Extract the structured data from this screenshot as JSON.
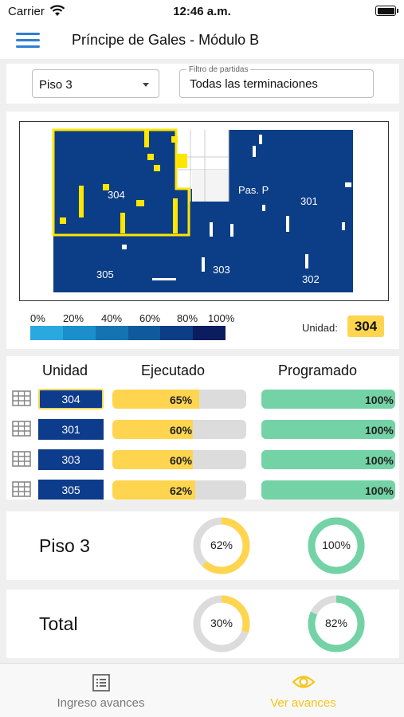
{
  "status_bar": {
    "carrier": "Carrier",
    "time": "12:46 a.m."
  },
  "header": {
    "title": "Príncipe de Gales - Módulo B"
  },
  "filters": {
    "floor_selected": "Piso 3",
    "partidas_label": "Filtro de partidas",
    "partidas_value": "Todas las terminaciones"
  },
  "plan": {
    "units": [
      {
        "label": "304",
        "selected": true
      },
      {
        "label": "Pas. P"
      },
      {
        "label": "301"
      },
      {
        "label": "305"
      },
      {
        "label": "303"
      },
      {
        "label": "302"
      }
    ],
    "legend": {
      "labels": [
        "0%",
        "20%",
        "40%",
        "60%",
        "80%",
        "100%"
      ],
      "colors": [
        "#29a9e0",
        "#1a8fcc",
        "#1474b1",
        "#0f5a9c",
        "#0c3d87",
        "#0b1d5e"
      ]
    },
    "unit_label": "Unidad:",
    "selected_unit": "304"
  },
  "units_table": {
    "headers": {
      "unit": "Unidad",
      "executed": "Ejecutado",
      "programmed": "Programado"
    },
    "rows": [
      {
        "unit": "304",
        "executed": 65,
        "executed_label": "65%",
        "programmed": 100,
        "programmed_label": "100%",
        "selected": true
      },
      {
        "unit": "301",
        "executed": 60,
        "executed_label": "60%",
        "programmed": 100,
        "programmed_label": "100%"
      },
      {
        "unit": "303",
        "executed": 60,
        "executed_label": "60%",
        "programmed": 100,
        "programmed_label": "100%"
      },
      {
        "unit": "305",
        "executed": 62,
        "executed_label": "62%",
        "programmed": 100,
        "programmed_label": "100%"
      }
    ]
  },
  "summary": [
    {
      "name": "Piso 3",
      "executed": 62,
      "executed_label": "62%",
      "programmed": 100,
      "programmed_label": "100%"
    },
    {
      "name": "Total",
      "executed": 30,
      "executed_label": "30%",
      "programmed": 82,
      "programmed_label": "82%"
    }
  ],
  "colors": {
    "accent_blue": "#2d7fd3",
    "unit_blue": "#0d3c8c",
    "executed": "#ffd54f",
    "programmed": "#74d3a6",
    "track": "#dcdcdc",
    "tab_active": "#f5c518",
    "tab_inactive": "#777777"
  },
  "tabs": [
    {
      "label": "Ingreso avances",
      "icon": "list-icon",
      "active": false
    },
    {
      "label": "Ver avances",
      "icon": "eye-icon",
      "active": true
    }
  ]
}
